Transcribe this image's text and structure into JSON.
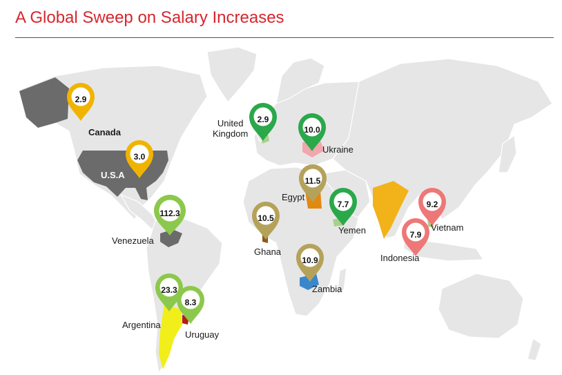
{
  "title": "A Global Sweep on Salary Increases",
  "colors": {
    "title": "#d7262e",
    "land": "#e6e6e6",
    "pin_gold": "#f0b400",
    "pin_green_dark": "#2aa84a",
    "pin_green_light": "#8cc84b",
    "pin_olive": "#b5a25a",
    "pin_pink": "#ee7777",
    "canada_usa": "#6b6b6b",
    "argentina": "#f2ee1a",
    "uruguay": "#b31c1c",
    "india": "#f2b21a",
    "egypt": "#e08a10",
    "zambia": "#3a88cc"
  },
  "countries": [
    {
      "id": "canada",
      "label": "Canada",
      "value": "2.9",
      "pin_color": "gold"
    },
    {
      "id": "usa",
      "label": "U.S.A",
      "value": "3.0",
      "pin_color": "gold"
    },
    {
      "id": "uk",
      "label": "United\nKingdom",
      "value": "2.9",
      "pin_color": "green-dark"
    },
    {
      "id": "ukraine",
      "label": "Ukraine",
      "value": "10.0",
      "pin_color": "green-dark"
    },
    {
      "id": "egypt",
      "label": "Egypt",
      "value": "11.5",
      "pin_color": "olive"
    },
    {
      "id": "yemen",
      "label": "Yemen",
      "value": "7.7",
      "pin_color": "green-dark"
    },
    {
      "id": "ghana",
      "label": "Ghana",
      "value": "10.5",
      "pin_color": "olive"
    },
    {
      "id": "zambia",
      "label": "Zambia",
      "value": "10.9",
      "pin_color": "olive"
    },
    {
      "id": "venezuela",
      "label": "Venezuela",
      "value": "112.3",
      "pin_color": "green-light"
    },
    {
      "id": "argentina",
      "label": "Argentina",
      "value": "23.3",
      "pin_color": "green-light"
    },
    {
      "id": "uruguay",
      "label": "Uruguay",
      "value": "8.3",
      "pin_color": "green-light"
    },
    {
      "id": "vietnam",
      "label": "Vietnam",
      "value": "9.2",
      "pin_color": "pink"
    },
    {
      "id": "indonesia",
      "label": "Indonesia",
      "value": "7.9",
      "pin_color": "pink"
    }
  ]
}
